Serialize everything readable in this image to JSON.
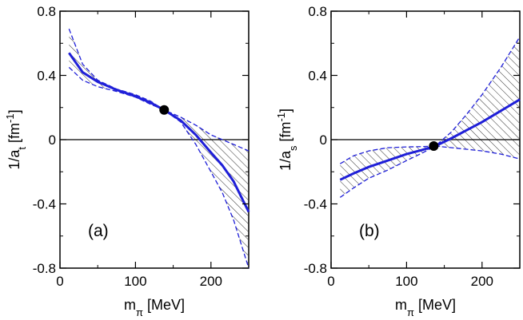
{
  "chart_data": [
    {
      "type": "line",
      "panel_label": "(a)",
      "xlabel": {
        "main": "m",
        "sub": "π",
        "unit": " [MeV]"
      },
      "ylabel": {
        "main": "1/a",
        "sub": "t",
        "unit": " [fm",
        "sup": "-1",
        "close": "]"
      },
      "xlim": [
        0,
        250
      ],
      "ylim": [
        -0.8,
        0.8
      ],
      "xticks": [
        {
          "v": 0,
          "t": "0"
        },
        {
          "v": 100,
          "t": "100"
        },
        {
          "v": 200,
          "t": "200"
        }
      ],
      "yticks": [
        {
          "v": -0.8,
          "t": "-0.8"
        },
        {
          "v": -0.4,
          "t": "-0.4"
        },
        {
          "v": 0,
          "t": "0"
        },
        {
          "v": 0.4,
          "t": "0.4"
        },
        {
          "v": 0.8,
          "t": "0.8"
        }
      ],
      "zero_line": true,
      "central": {
        "x": [
          12,
          30,
          50,
          75,
          100,
          120,
          138,
          160,
          180,
          200,
          215,
          230,
          250
        ],
        "y": [
          0.54,
          0.42,
          0.36,
          0.31,
          0.27,
          0.23,
          0.185,
          0.12,
          0.03,
          -0.08,
          -0.16,
          -0.26,
          -0.45
        ]
      },
      "band_upper": {
        "x": [
          12,
          30,
          50,
          75,
          100,
          120,
          138,
          160,
          180,
          200,
          215,
          230,
          250
        ],
        "y": [
          0.69,
          0.47,
          0.37,
          0.315,
          0.28,
          0.24,
          0.185,
          0.14,
          0.09,
          0.03,
          0.0,
          -0.03,
          -0.07
        ]
      },
      "band_lower": {
        "x": [
          12,
          30,
          50,
          75,
          100,
          120,
          138,
          160,
          180,
          200,
          215,
          230,
          250
        ],
        "y": [
          0.45,
          0.37,
          0.33,
          0.3,
          0.265,
          0.22,
          0.185,
          0.11,
          -0.03,
          -0.2,
          -0.33,
          -0.5,
          -0.8
        ]
      },
      "physical_point": {
        "x": 138,
        "y": 0.185
      },
      "colors": {
        "line": "#1f1fd8",
        "point": "#000000",
        "hatch": "#333333"
      }
    },
    {
      "type": "line",
      "panel_label": "(b)",
      "xlabel": {
        "main": "m",
        "sub": "π",
        "unit": " [MeV]"
      },
      "ylabel": {
        "main": "1/a",
        "sub": "s",
        "unit": " [fm",
        "sup": "-1",
        "close": "]"
      },
      "xlim": [
        0,
        250
      ],
      "ylim": [
        -0.8,
        0.8
      ],
      "xticks": [
        {
          "v": 0,
          "t": "0"
        },
        {
          "v": 100,
          "t": "100"
        },
        {
          "v": 200,
          "t": "200"
        }
      ],
      "yticks": [
        {
          "v": -0.8,
          "t": "-0.8"
        },
        {
          "v": -0.4,
          "t": "-0.4"
        },
        {
          "v": 0,
          "t": "0"
        },
        {
          "v": 0.4,
          "t": "0.4"
        },
        {
          "v": 0.8,
          "t": "0.8"
        }
      ],
      "zero_line": true,
      "central": {
        "x": [
          12,
          30,
          50,
          75,
          100,
          120,
          138,
          160,
          180,
          200,
          225,
          250
        ],
        "y": [
          -0.25,
          -0.21,
          -0.17,
          -0.13,
          -0.09,
          -0.065,
          -0.04,
          0.01,
          0.06,
          0.11,
          0.18,
          0.25
        ]
      },
      "band_upper": {
        "x": [
          12,
          30,
          50,
          75,
          100,
          120,
          138,
          160,
          180,
          200,
          225,
          250
        ],
        "y": [
          -0.15,
          -0.1,
          -0.07,
          -0.05,
          -0.045,
          -0.043,
          -0.04,
          0.05,
          0.16,
          0.28,
          0.45,
          0.64
        ]
      },
      "band_lower": {
        "x": [
          12,
          30,
          50,
          75,
          100,
          120,
          138,
          160,
          180,
          200,
          225,
          250
        ],
        "y": [
          -0.36,
          -0.3,
          -0.24,
          -0.19,
          -0.13,
          -0.085,
          -0.04,
          -0.05,
          -0.06,
          -0.07,
          -0.09,
          -0.12
        ]
      },
      "physical_point": {
        "x": 136,
        "y": -0.04
      },
      "colors": {
        "line": "#1f1fd8",
        "point": "#000000",
        "hatch": "#333333"
      }
    }
  ]
}
